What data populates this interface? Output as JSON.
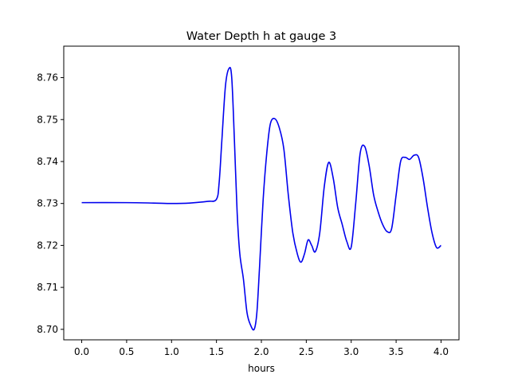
{
  "chart_data": {
    "type": "line",
    "title": "Water Depth h at gauge 3",
    "xlabel": "hours",
    "ylabel": "",
    "xlim": [
      -0.2,
      4.2
    ],
    "ylim": [
      8.6975,
      8.7675
    ],
    "xticks": [
      {
        "value": 0.0,
        "label": "0.0"
      },
      {
        "value": 0.5,
        "label": "0.5"
      },
      {
        "value": 1.0,
        "label": "1.0"
      },
      {
        "value": 1.5,
        "label": "1.5"
      },
      {
        "value": 2.0,
        "label": "2.0"
      },
      {
        "value": 2.5,
        "label": "2.5"
      },
      {
        "value": 3.0,
        "label": "3.0"
      },
      {
        "value": 3.5,
        "label": "3.5"
      },
      {
        "value": 4.0,
        "label": "4.0"
      }
    ],
    "yticks": [
      {
        "value": 8.7,
        "label": "8.70"
      },
      {
        "value": 8.71,
        "label": "8.71"
      },
      {
        "value": 8.72,
        "label": "8.72"
      },
      {
        "value": 8.73,
        "label": "8.73"
      },
      {
        "value": 8.74,
        "label": "8.74"
      },
      {
        "value": 8.75,
        "label": "8.75"
      },
      {
        "value": 8.76,
        "label": "8.76"
      }
    ],
    "grid": false,
    "color": "#0000ee",
    "series": [
      {
        "x": [
          0.0,
          0.5,
          0.8,
          1.0,
          1.2,
          1.4,
          1.5,
          1.53,
          1.56,
          1.6,
          1.64,
          1.67,
          1.7,
          1.73,
          1.76,
          1.8,
          1.84,
          1.88,
          1.92,
          1.95,
          1.98,
          2.02,
          2.06,
          2.1,
          2.15,
          2.2,
          2.25,
          2.3,
          2.35,
          2.4,
          2.44,
          2.48,
          2.52,
          2.56,
          2.6,
          2.65,
          2.7,
          2.75,
          2.8,
          2.85,
          2.9,
          2.95,
          3.0,
          3.05,
          3.1,
          3.15,
          3.2,
          3.25,
          3.3,
          3.35,
          3.4,
          3.45,
          3.5,
          3.55,
          3.6,
          3.65,
          3.7,
          3.75,
          3.8,
          3.85,
          3.9,
          3.95,
          4.0
        ],
        "y": [
          8.7302,
          8.7302,
          8.7301,
          8.73,
          8.7301,
          8.7305,
          8.731,
          8.735,
          8.745,
          8.758,
          8.7622,
          8.76,
          8.745,
          8.728,
          8.718,
          8.712,
          8.704,
          8.701,
          8.7,
          8.704,
          8.715,
          8.731,
          8.742,
          8.749,
          8.7502,
          8.748,
          8.743,
          8.732,
          8.723,
          8.718,
          8.716,
          8.718,
          8.7213,
          8.72,
          8.7185,
          8.723,
          8.734,
          8.7398,
          8.736,
          8.729,
          8.725,
          8.721,
          8.7196,
          8.73,
          8.742,
          8.7436,
          8.739,
          8.732,
          8.728,
          8.725,
          8.7233,
          8.724,
          8.732,
          8.74,
          8.741,
          8.7405,
          8.7415,
          8.741,
          8.736,
          8.729,
          8.723,
          8.7195,
          8.72
        ]
      }
    ]
  }
}
